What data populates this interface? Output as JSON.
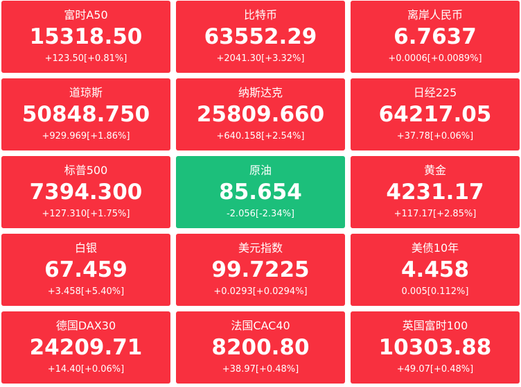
{
  "tiles": [
    {
      "name": "富时A50",
      "price": "15318.50",
      "change": "+123.50[+0.81%]",
      "color": "#f8303f"
    },
    {
      "name": "比特币",
      "price": "63552.29",
      "change": "+2041.30[+3.32%]",
      "color": "#f8303f"
    },
    {
      "name": "离岸人民币",
      "price": "6.7637",
      "change": "+0.0006[+0.0089%]",
      "color": "#f8303f"
    },
    {
      "name": "道琼斯",
      "price": "50848.750",
      "change": "+929.969[+1.86%]",
      "color": "#f8303f"
    },
    {
      "name": "纳斯达克",
      "price": "25809.660",
      "change": "+640.158[+2.54%]",
      "color": "#f8303f"
    },
    {
      "name": "日经225",
      "price": "64217.05",
      "change": "+37.78[+0.06%]",
      "color": "#f8303f"
    },
    {
      "name": "标普500",
      "price": "7394.300",
      "change": "+127.310[+1.75%]",
      "color": "#f8303f"
    },
    {
      "name": "原油",
      "price": "85.654",
      "change": "-2.056[-2.34%]",
      "color": "#1cbf7b"
    },
    {
      "name": "黄金",
      "price": "4231.17",
      "change": "+117.17[+2.85%]",
      "color": "#f8303f"
    },
    {
      "name": "白银",
      "price": "67.459",
      "change": "+3.458[+5.40%]",
      "color": "#f8303f"
    },
    {
      "name": "美元指数",
      "price": "99.7225",
      "change": "+0.0293[+0.0294%]",
      "color": "#f8303f"
    },
    {
      "name": "美债10年",
      "price": "4.458",
      "change": "0.005[0.112%]",
      "color": "#f8303f"
    },
    {
      "name": "德国DAX30",
      "price": "24209.71",
      "change": "+14.40[+0.06%]",
      "color": "#f8303f"
    },
    {
      "name": "法国CAC40",
      "price": "8200.80",
      "change": "+38.97[+0.48%]",
      "color": "#f8303f"
    },
    {
      "name": "英国富时100",
      "price": "10303.88",
      "change": "+49.07[+0.48%]",
      "color": "#f8303f"
    }
  ]
}
